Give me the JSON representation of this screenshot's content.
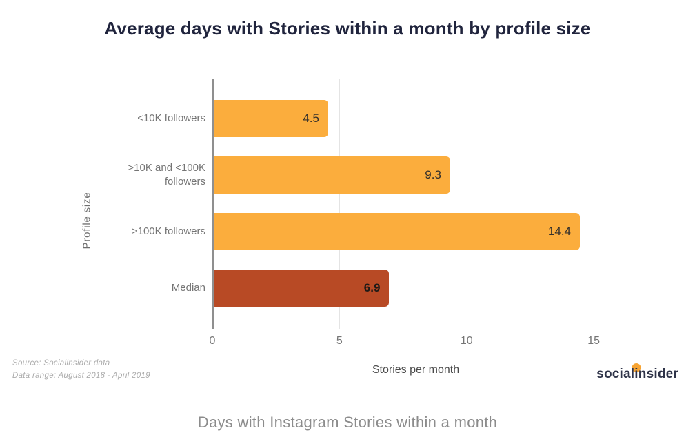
{
  "page": {
    "caption": "Days with Instagram Stories within a month"
  },
  "footer": {
    "source_line1": "Source: Socialinsider data",
    "source_line2": "Data range: August 2018 - April 2019",
    "logo": {
      "pre": "social",
      "i": "i",
      "post": "nsider",
      "dot_color": "#F7A433"
    }
  },
  "chart_data": {
    "type": "bar",
    "orientation": "horizontal",
    "title": "Average days with Stories within a month by profile size",
    "categories": [
      "<10K followers",
      ">10K and <100K followers",
      ">100K followers",
      "Median"
    ],
    "values": [
      4.5,
      9.3,
      14.4,
      6.9
    ],
    "value_labels": [
      "4.5",
      "9.3",
      "14.4",
      "6.9"
    ],
    "value_bold": [
      false,
      false,
      false,
      true
    ],
    "bar_colors": [
      "#FBAD3D",
      "#FBAD3D",
      "#FBAD3D",
      "#B84A25"
    ],
    "xlabel": "Stories per month",
    "ylabel": "Profile size",
    "xlim": [
      0,
      16
    ],
    "xticks": [
      0,
      5,
      10,
      15
    ],
    "grid": true,
    "legend": "none",
    "colors": {
      "accent_orange": "#FBAD3D",
      "accent_red": "#B84A25",
      "title": "#20243D"
    }
  }
}
